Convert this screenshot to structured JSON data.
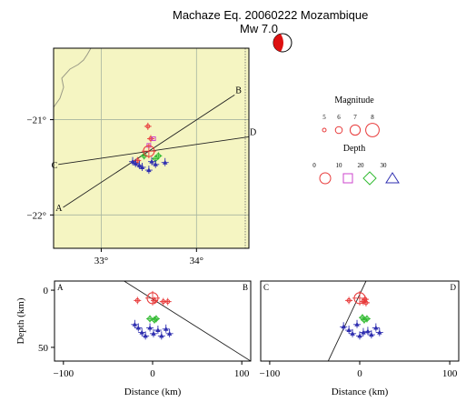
{
  "title": "Machaze Eq. 20060222 Mozambique",
  "subtitle": "Mw 7.0",
  "colors": {
    "map_fill": "#f5f5c2",
    "grid": "#a6b5a0",
    "coast": "#9a9a86",
    "shallow": "#e83a3a",
    "mid_shallow": "#cc44cc",
    "mid": "#33bb33",
    "deep": "#2f2fb0",
    "beachball_fill": "#dd1111"
  },
  "map": {
    "lon_range": [
      32.5,
      34.55
    ],
    "lat_range": [
      -22.35,
      -20.25
    ],
    "x_ticks": [
      {
        "value": 33,
        "label": "33°"
      },
      {
        "value": 34,
        "label": "34°"
      }
    ],
    "y_ticks": [
      {
        "value": -21,
        "label": "−21°"
      },
      {
        "value": -22,
        "label": "−22°"
      }
    ],
    "epicenter": {
      "lon": 33.5,
      "lat": -21.33
    },
    "profiles": [
      {
        "start_label": "A",
        "end_label": "B",
        "start": {
          "lon": 32.6,
          "lat": -21.92
        },
        "end": {
          "lon": 34.4,
          "lat": -20.74
        }
      },
      {
        "start_label": "C",
        "end_label": "D",
        "start": {
          "lon": 32.55,
          "lat": -21.47
        },
        "end": {
          "lon": 34.55,
          "lat": -21.18
        }
      }
    ],
    "events": [
      {
        "lon": 33.49,
        "lat": -21.07,
        "mag": 5,
        "depth": 8
      },
      {
        "lon": 33.52,
        "lat": -21.2,
        "mag": 5,
        "depth": 9
      },
      {
        "lon": 33.55,
        "lat": -21.2,
        "mag": 5,
        "depth": 10
      },
      {
        "lon": 33.5,
        "lat": -21.27,
        "mag": 5,
        "depth": 10
      },
      {
        "lon": 33.38,
        "lat": -21.43,
        "mag": 5,
        "depth": 9
      },
      {
        "lon": 33.45,
        "lat": -21.38,
        "mag": 5,
        "depth": 25
      },
      {
        "lon": 33.57,
        "lat": -21.41,
        "mag": 5,
        "depth": 24
      },
      {
        "lon": 33.6,
        "lat": -21.38,
        "mag": 5,
        "depth": 26
      },
      {
        "lon": 33.33,
        "lat": -21.44,
        "mag": 5,
        "depth": 33
      },
      {
        "lon": 33.36,
        "lat": -21.46,
        "mag": 5,
        "depth": 34
      },
      {
        "lon": 33.4,
        "lat": -21.48,
        "mag": 5,
        "depth": 36
      },
      {
        "lon": 33.43,
        "lat": -21.5,
        "mag": 5,
        "depth": 35
      },
      {
        "lon": 33.5,
        "lat": -21.53,
        "mag": 5,
        "depth": 34
      },
      {
        "lon": 33.53,
        "lat": -21.44,
        "mag": 5,
        "depth": 35
      },
      {
        "lon": 33.57,
        "lat": -21.47,
        "mag": 5,
        "depth": 37
      },
      {
        "lon": 33.67,
        "lat": -21.45,
        "mag": 5,
        "depth": 38
      }
    ]
  },
  "legend": {
    "magnitude_title": "Magnitude",
    "magnitudes": [
      {
        "value": 5,
        "label": "5"
      },
      {
        "value": 6,
        "label": "6"
      },
      {
        "value": 7,
        "label": "7"
      },
      {
        "value": 8,
        "label": "8"
      }
    ],
    "depth_title": "Depth",
    "depths": [
      {
        "value": 0,
        "label": "0"
      },
      {
        "value": 10,
        "label": "10"
      },
      {
        "value": 20,
        "label": "20"
      },
      {
        "value": 30,
        "label": "30"
      }
    ]
  },
  "chart_data": [
    {
      "type": "scatter",
      "panel": "cross-section A-B",
      "start_label": "A",
      "end_label": "B",
      "xlabel": "Distance (km)",
      "ylabel": "Depth (km)",
      "xlim": [
        -110,
        110
      ],
      "ylim": [
        62,
        -8
      ],
      "x_ticks": [
        {
          "value": -100,
          "label": "−100"
        },
        {
          "value": 0,
          "label": "0"
        },
        {
          "value": 100,
          "label": "100"
        }
      ],
      "y_ticks": [
        {
          "value": 0,
          "label": "0"
        },
        {
          "value": 50,
          "label": "50"
        }
      ],
      "fault_line": [
        [
          -32,
          -8
        ],
        [
          110,
          62
        ]
      ],
      "mainshock": {
        "x": 0,
        "y": 7
      },
      "points": [
        {
          "x": -17,
          "y": 9,
          "depth_class": "shallow"
        },
        {
          "x": 2,
          "y": 9,
          "depth_class": "shallow"
        },
        {
          "x": 12,
          "y": 10,
          "depth_class": "shallow"
        },
        {
          "x": 17,
          "y": 10,
          "depth_class": "shallow"
        },
        {
          "x": -3,
          "y": 25,
          "depth_class": "mid"
        },
        {
          "x": 2,
          "y": 26,
          "depth_class": "mid"
        },
        {
          "x": 4,
          "y": 25,
          "depth_class": "mid"
        },
        {
          "x": -20,
          "y": 30,
          "depth_class": "deep"
        },
        {
          "x": -16,
          "y": 33,
          "depth_class": "deep"
        },
        {
          "x": -12,
          "y": 37,
          "depth_class": "deep"
        },
        {
          "x": -8,
          "y": 40,
          "depth_class": "deep"
        },
        {
          "x": -3,
          "y": 33,
          "depth_class": "deep"
        },
        {
          "x": 1,
          "y": 38,
          "depth_class": "deep"
        },
        {
          "x": 6,
          "y": 35,
          "depth_class": "deep"
        },
        {
          "x": 10,
          "y": 40,
          "depth_class": "deep"
        },
        {
          "x": 15,
          "y": 34,
          "depth_class": "deep"
        },
        {
          "x": 19,
          "y": 38,
          "depth_class": "deep"
        }
      ]
    },
    {
      "type": "scatter",
      "panel": "cross-section C-D",
      "start_label": "C",
      "end_label": "D",
      "xlabel": "Distance (km)",
      "ylabel": "",
      "xlim": [
        -110,
        110
      ],
      "ylim": [
        62,
        -8
      ],
      "x_ticks": [
        {
          "value": -100,
          "label": "−100"
        },
        {
          "value": 0,
          "label": "0"
        },
        {
          "value": 100,
          "label": "100"
        }
      ],
      "y_ticks": [],
      "fault_line": [
        [
          7,
          -8
        ],
        [
          -35,
          62
        ]
      ],
      "mainshock": {
        "x": 0,
        "y": 7
      },
      "points": [
        {
          "x": -12,
          "y": 9,
          "depth_class": "shallow"
        },
        {
          "x": 4,
          "y": 10,
          "depth_class": "shallow"
        },
        {
          "x": 6,
          "y": 8,
          "depth_class": "shallow"
        },
        {
          "x": 7,
          "y": 11,
          "depth_class": "shallow"
        },
        {
          "x": 3,
          "y": 24,
          "depth_class": "mid"
        },
        {
          "x": 5,
          "y": 26,
          "depth_class": "mid"
        },
        {
          "x": 8,
          "y": 25,
          "depth_class": "mid"
        },
        {
          "x": -18,
          "y": 32,
          "depth_class": "deep"
        },
        {
          "x": -12,
          "y": 35,
          "depth_class": "deep"
        },
        {
          "x": -8,
          "y": 38,
          "depth_class": "deep"
        },
        {
          "x": -3,
          "y": 30,
          "depth_class": "deep"
        },
        {
          "x": 0,
          "y": 40,
          "depth_class": "deep"
        },
        {
          "x": 4,
          "y": 37,
          "depth_class": "deep"
        },
        {
          "x": 9,
          "y": 36,
          "depth_class": "deep"
        },
        {
          "x": 13,
          "y": 39,
          "depth_class": "deep"
        },
        {
          "x": 18,
          "y": 33,
          "depth_class": "deep"
        },
        {
          "x": 22,
          "y": 37,
          "depth_class": "deep"
        }
      ]
    }
  ]
}
